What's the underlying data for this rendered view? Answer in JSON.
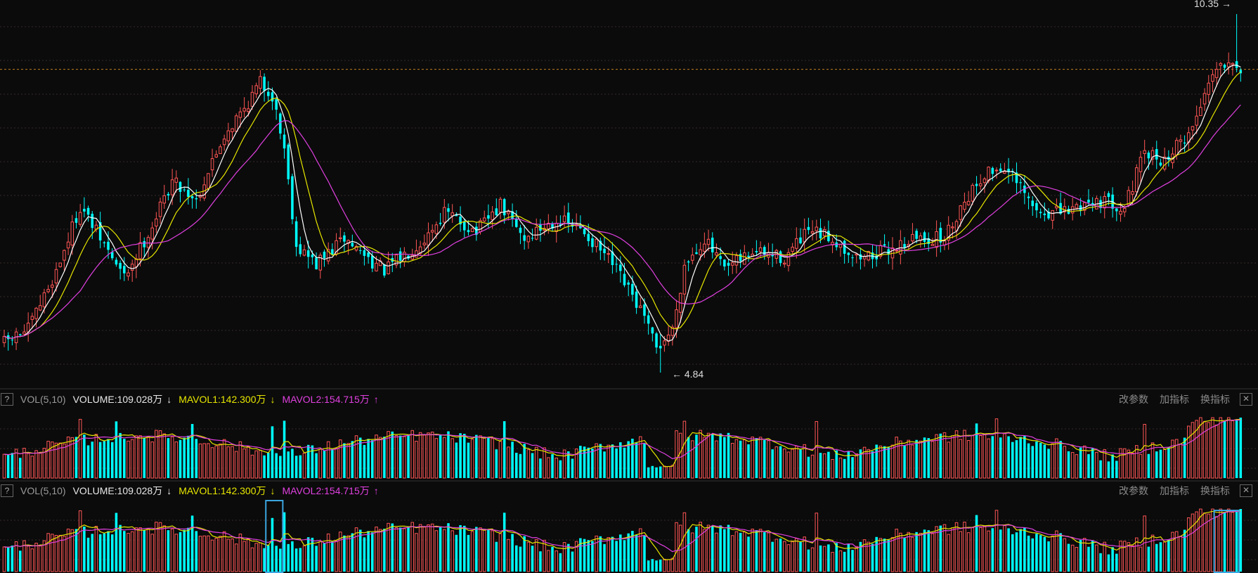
{
  "chart_data": {
    "type": "candlestick",
    "max_price_label": "10.35",
    "min_price_label": "4.84",
    "max_price": 10.35,
    "min_price": 4.84,
    "reference_price": 9.5,
    "price_keyframes": [
      [
        0,
        5.3
      ],
      [
        6,
        5.5
      ],
      [
        13,
        6.4
      ],
      [
        19,
        7.4
      ],
      [
        23,
        7.0
      ],
      [
        30,
        6.3
      ],
      [
        37,
        7.1
      ],
      [
        42,
        7.8
      ],
      [
        48,
        7.5
      ],
      [
        55,
        8.5
      ],
      [
        60,
        8.9
      ],
      [
        64,
        9.3
      ],
      [
        67,
        9.1
      ],
      [
        70,
        8.3
      ],
      [
        73,
        6.8
      ],
      [
        78,
        6.5
      ],
      [
        85,
        6.9
      ],
      [
        95,
        6.4
      ],
      [
        105,
        6.9
      ],
      [
        110,
        7.3
      ],
      [
        118,
        7.0
      ],
      [
        124,
        7.4
      ],
      [
        130,
        6.9
      ],
      [
        138,
        7.2
      ],
      [
        145,
        7.0
      ],
      [
        152,
        6.5
      ],
      [
        159,
        5.8
      ],
      [
        163,
        5.2
      ],
      [
        167,
        5.5
      ],
      [
        170,
        6.5
      ],
      [
        175,
        6.9
      ],
      [
        180,
        6.4
      ],
      [
        187,
        6.7
      ],
      [
        195,
        6.6
      ],
      [
        201,
        7.0
      ],
      [
        207,
        6.9
      ],
      [
        213,
        6.6
      ],
      [
        220,
        6.7
      ],
      [
        227,
        6.9
      ],
      [
        235,
        6.9
      ],
      [
        240,
        7.5
      ],
      [
        245,
        7.9
      ],
      [
        250,
        8.0
      ],
      [
        258,
        7.3
      ],
      [
        265,
        7.3
      ],
      [
        272,
        7.5
      ],
      [
        280,
        7.4
      ],
      [
        285,
        8.2
      ],
      [
        290,
        8.1
      ],
      [
        297,
        8.6
      ],
      [
        302,
        9.5
      ],
      [
        307,
        9.7
      ],
      [
        309,
        9.5
      ]
    ],
    "vol_spike_indices": [
      19,
      28,
      47,
      67,
      70,
      125,
      170,
      203,
      243,
      248,
      285,
      298,
      301
    ],
    "volume_panels": [
      {
        "name": "VOL(5,10)",
        "volume_text": "VOLUME:109.028万",
        "mavol1_text": "MAVOL1:142.300万",
        "mavol2_text": "MAVOL2:154.715万",
        "volume": "109.028万",
        "mavol1": "142.300万",
        "mavol2": "154.715万"
      },
      {
        "name": "VOL(5,10)",
        "volume_text": "VOLUME:109.028万",
        "mavol1_text": "MAVOL1:142.300万",
        "mavol2_text": "MAVOL2:154.715万",
        "volume": "109.028万",
        "mavol1": "142.300万",
        "mavol2": "154.715万"
      }
    ],
    "colors": {
      "up": "#ff5555",
      "down": "#00ffff",
      "ma5": "#ffffff",
      "ma10": "#e6e600",
      "ma20": "#e040e0",
      "grid": "#3a2a2a",
      "reference": "#c08020",
      "highlight": "#3ba6e0"
    }
  },
  "menu": {
    "modify_params": "改参数",
    "add_indicator": "加指标",
    "switch_indicator": "换指标"
  },
  "icons": {
    "help": "?",
    "close": "✕",
    "arrow_down": "↓",
    "arrow_up": "↑",
    "max_arrow": "→",
    "min_arrow": "←"
  }
}
